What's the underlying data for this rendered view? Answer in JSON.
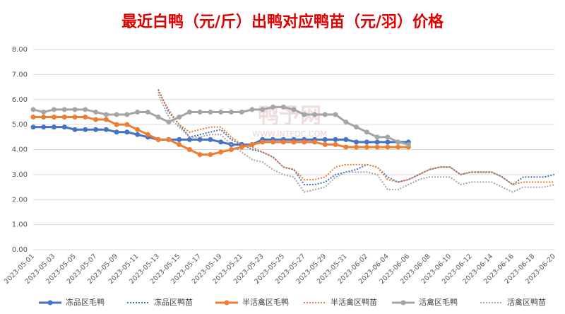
{
  "chart_data": {
    "type": "line",
    "title": "最近白鸭（元/斤）出鸭对应鸭苗（元/羽）价格",
    "watermark": [
      "鸭予网",
      "WWW.INTEDC.COM"
    ],
    "categories": [
      "2023-05-01",
      null,
      "2023-05-03",
      null,
      "2023-05-05",
      null,
      "2023-05-07",
      null,
      "2023-05-09",
      null,
      "2023-05-11",
      null,
      "2023-05-13",
      null,
      "2023-05-15",
      null,
      "2023-05-17",
      null,
      "2023-05-19",
      null,
      "2023-05-21",
      null,
      "2023-05-23",
      null,
      "2023-05-25",
      null,
      "2023-05-27",
      null,
      "2023-05-29",
      null,
      "2023-05-31",
      null,
      "2023-06-02",
      null,
      "2023-06-04",
      null,
      "2023-06-06",
      null,
      "2023-06-08",
      null,
      "2023-06-10",
      null,
      "2023-06-12",
      null,
      "2023-06-14",
      null,
      "2023-06-16",
      null,
      "2023-06-18",
      null,
      "2023-06-20"
    ],
    "ylim": [
      0,
      8
    ],
    "yticks": [
      {
        "value": 0,
        "label": "0.00"
      },
      {
        "value": 1,
        "label": "1.00"
      },
      {
        "value": 2,
        "label": "2.00"
      },
      {
        "value": 3,
        "label": "3.00"
      },
      {
        "value": 4,
        "label": "4.00"
      },
      {
        "value": 5,
        "label": "5.00"
      },
      {
        "value": 6,
        "label": "6.00"
      },
      {
        "value": 7,
        "label": "7.00"
      },
      {
        "value": 8,
        "label": "8.00"
      }
    ],
    "grid": true,
    "legend": "bottom",
    "series": [
      {
        "name": "冻品区毛鸭",
        "color": "#4472c4",
        "style": "solid",
        "values": [
          4.9,
          4.9,
          4.9,
          4.9,
          4.8,
          4.8,
          4.8,
          4.8,
          4.7,
          4.7,
          4.6,
          4.5,
          4.4,
          4.4,
          4.4,
          4.4,
          4.4,
          4.4,
          4.3,
          4.2,
          4.2,
          4.2,
          4.4,
          4.4,
          4.4,
          4.4,
          4.4,
          4.4,
          4.4,
          4.4,
          4.4,
          4.3,
          4.3,
          4.3,
          4.3,
          4.3,
          4.3,
          null,
          null,
          null,
          null,
          null,
          null,
          null,
          null,
          null,
          null,
          null,
          null,
          null,
          null
        ]
      },
      {
        "name": "冻品区鸭苗",
        "color": "#4472c4",
        "style": "dotted",
        "values": [
          null,
          null,
          null,
          null,
          null,
          null,
          null,
          null,
          null,
          null,
          null,
          null,
          6.4,
          5.5,
          5.0,
          4.5,
          4.6,
          4.7,
          4.8,
          4.4,
          4.2,
          4.0,
          3.9,
          3.7,
          3.3,
          3.2,
          2.6,
          2.6,
          2.7,
          3.0,
          3.1,
          3.2,
          3.4,
          3.3,
          2.9,
          2.7,
          2.8,
          3.0,
          3.2,
          3.3,
          3.3,
          3.0,
          3.1,
          3.1,
          3.1,
          2.9,
          2.6,
          2.9,
          2.9,
          2.9,
          3.0
        ]
      },
      {
        "name": "半活禽区毛鸭",
        "color": "#ed7d31",
        "style": "solid",
        "values": [
          5.3,
          5.3,
          5.3,
          5.3,
          5.3,
          5.3,
          5.2,
          5.2,
          5.0,
          5.0,
          4.8,
          4.6,
          4.4,
          4.4,
          4.2,
          4.0,
          3.8,
          3.8,
          3.9,
          4.0,
          4.1,
          4.2,
          4.3,
          4.3,
          4.3,
          4.3,
          4.3,
          4.3,
          4.2,
          4.2,
          4.1,
          4.1,
          4.1,
          4.1,
          4.1,
          4.1,
          4.1,
          null,
          null,
          null,
          null,
          null,
          null,
          null,
          null,
          null,
          null,
          null,
          null,
          null,
          null
        ]
      },
      {
        "name": "半活禽区鸭苗",
        "color": "#ed7d31",
        "style": "dotted",
        "values": [
          null,
          null,
          null,
          null,
          null,
          null,
          null,
          null,
          null,
          null,
          null,
          null,
          6.3,
          5.6,
          5.0,
          4.7,
          4.8,
          4.9,
          4.9,
          4.5,
          4.2,
          4.1,
          3.9,
          3.7,
          3.3,
          3.2,
          2.8,
          2.8,
          2.9,
          3.3,
          3.4,
          3.4,
          3.4,
          3.3,
          2.8,
          2.7,
          2.8,
          3.0,
          3.2,
          3.3,
          3.3,
          3.0,
          3.1,
          3.1,
          3.1,
          2.9,
          2.6,
          2.7,
          2.7,
          2.7,
          2.7
        ]
      },
      {
        "name": "活禽区毛鸭",
        "color": "#a5a5a5",
        "style": "solid",
        "values": [
          5.6,
          5.5,
          5.6,
          5.6,
          5.6,
          5.6,
          5.5,
          5.4,
          5.4,
          5.4,
          5.5,
          5.5,
          5.3,
          5.1,
          5.3,
          5.5,
          5.5,
          5.5,
          5.5,
          5.5,
          5.5,
          5.6,
          5.6,
          5.7,
          5.7,
          5.6,
          5.4,
          5.4,
          5.4,
          5.4,
          5.1,
          4.9,
          4.7,
          4.5,
          4.5,
          4.3,
          4.2,
          null,
          null,
          null,
          null,
          null,
          null,
          null,
          null,
          null,
          null,
          null,
          null,
          null,
          null
        ]
      },
      {
        "name": "活禽区鸭苗",
        "color": "#a5a5a5",
        "style": "dotted",
        "values": [
          null,
          null,
          null,
          null,
          null,
          null,
          null,
          null,
          null,
          null,
          null,
          null,
          6.2,
          5.3,
          4.9,
          4.5,
          4.5,
          4.6,
          4.6,
          4.2,
          3.9,
          3.6,
          3.5,
          3.2,
          3.0,
          2.9,
          2.3,
          2.4,
          2.5,
          2.9,
          3.1,
          3.1,
          3.1,
          3.0,
          2.4,
          2.4,
          2.6,
          2.8,
          2.9,
          2.9,
          2.9,
          2.6,
          2.7,
          2.7,
          2.7,
          2.5,
          2.3,
          2.5,
          2.5,
          2.5,
          2.6
        ]
      }
    ]
  }
}
